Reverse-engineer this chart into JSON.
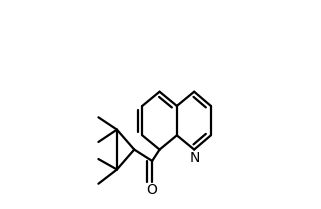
{
  "bg_color": "#ffffff",
  "line_color": "#000000",
  "lw": 1.6,
  "dbo": 0.022,
  "font_size": 10,
  "bl": 0.115
}
